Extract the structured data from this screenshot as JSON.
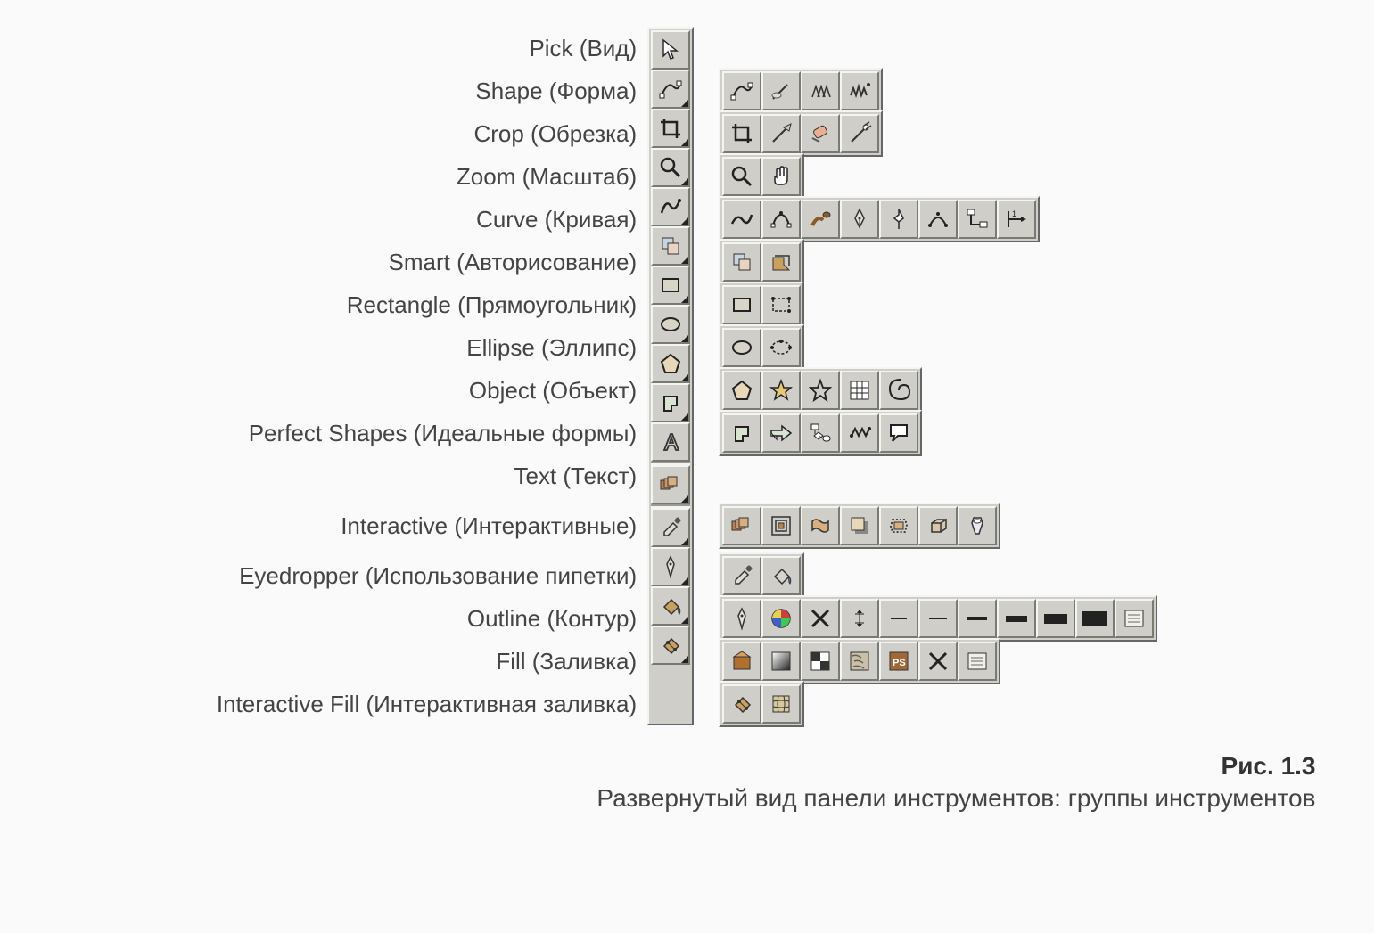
{
  "colors": {
    "panel_bg": "#d0cec8",
    "panel_hilite": "#f4f4f0",
    "panel_shadow": "#7a7a74",
    "page_bg": "#fafafa",
    "text": "#444444",
    "icon_stroke": "#222222"
  },
  "caption": {
    "number": "Рис. 1.3",
    "text": "Развернутый вид панели инструментов: группы инструментов"
  },
  "rows": [
    {
      "label": "Pick (Вид)",
      "main": "pick",
      "flyout_mark": false,
      "flyout": []
    },
    {
      "label": "Shape (Форма)",
      "main": "shape",
      "flyout_mark": true,
      "flyout": [
        "shape",
        "knife",
        "smudge",
        "roughen"
      ]
    },
    {
      "label": "Crop (Обрезка)",
      "main": "crop",
      "flyout_mark": true,
      "flyout": [
        "crop",
        "knife2",
        "eraser",
        "virtseg"
      ]
    },
    {
      "label": "Zoom (Масштаб)",
      "main": "zoom",
      "flyout_mark": true,
      "flyout": [
        "zoom",
        "hand"
      ]
    },
    {
      "label": "Curve (Кривая)",
      "main": "curve",
      "flyout_mark": true,
      "flyout": [
        "freehand",
        "bezier",
        "artistic",
        "pen",
        "polyline",
        "3pt-curve",
        "connector",
        "dimension"
      ]
    },
    {
      "label": "Smart (Авторисование)",
      "main": "smart",
      "flyout_mark": true,
      "flyout": [
        "smart",
        "smartfill"
      ]
    },
    {
      "label": "Rectangle (Прямоугольник)",
      "main": "rect",
      "flyout_mark": true,
      "flyout": [
        "rect",
        "3pt-rect"
      ]
    },
    {
      "label": "Ellipse (Эллипс)",
      "main": "ellipse",
      "flyout_mark": true,
      "flyout": [
        "ellipse",
        "3pt-ellipse"
      ]
    },
    {
      "label": "Object (Объект)",
      "main": "polygon",
      "flyout_mark": true,
      "flyout": [
        "polygon",
        "star",
        "complex-star",
        "graph-paper",
        "spiral"
      ]
    },
    {
      "label": "Perfect Shapes (Идеальные формы)",
      "main": "basic-shape",
      "flyout_mark": true,
      "flyout": [
        "basic-shape",
        "arrow-shape",
        "flowchart-shape",
        "banner-shape",
        "callout-shape"
      ]
    },
    {
      "label": "Text (Текст)",
      "main": "text",
      "flyout_mark": false,
      "flyout": []
    },
    {
      "separator": true
    },
    {
      "label": "Interactive (Интерактивные)",
      "main": "blend",
      "flyout_mark": true,
      "flyout": [
        "blend",
        "contour",
        "distort",
        "dropshadow",
        "envelope",
        "extrude",
        "transparency"
      ]
    },
    {
      "separator": true
    },
    {
      "label": "Eyedropper (Использование пипетки)",
      "main": "eyedropper",
      "flyout_mark": true,
      "flyout": [
        "eyedropper",
        "paintbucket"
      ]
    },
    {
      "label": "Outline (Контур)",
      "main": "outline",
      "flyout_mark": true,
      "flyout": [
        "outline-pen",
        "outline-color",
        "no-outline",
        "hairline",
        "line-0.25",
        "line-0.5",
        "line-1",
        "line-2",
        "line-4",
        "line-8",
        "outline-dialog"
      ]
    },
    {
      "label": "Fill (Заливка)",
      "main": "fill",
      "flyout_mark": true,
      "flyout": [
        "uniform-fill",
        "fountain-fill",
        "pattern-fill",
        "texture-fill",
        "postscript-fill",
        "no-fill",
        "fill-dialog"
      ]
    },
    {
      "label": "Interactive Fill (Интерактивная заливка)",
      "main": "int-fill",
      "flyout_mark": true,
      "flyout": [
        "int-fill",
        "mesh-fill"
      ]
    }
  ],
  "icons": {
    "pick": "<svg class='icon-svg' viewBox='0 0 30 30'><path d='M7 4 L7 22 L12 17 L15 25 L18 24 L15 16 L22 16 Z' fill='#fff' stroke='#222' stroke-width='1.4'/></svg>",
    "shape": "<svg class='icon-svg' viewBox='0 0 30 30'><path d='M5 22 Q12 6 18 12 Q24 18 26 8' fill='none' stroke='#222' stroke-width='2'/><rect x='3' y='20' width='5' height='5' fill='#fff' stroke='#222'/><rect x='22' y='6' width='5' height='5' fill='#fff' stroke='#222'/></svg>",
    "knife": "<svg class='icon-svg' viewBox='0 0 30 30'><path d='M6 24 L18 12 L22 8' stroke='#333' stroke-width='2' fill='none'/><ellipse cx='10' cy='20' rx='5' ry='3' fill='#e0dcd2' stroke='#555'/></svg>",
    "smudge": "<svg class='icon-svg' viewBox='0 0 30 30'><path d='M6 22 L10 10 L14 22 M12 22 L16 10 L20 22 M18 22 L22 10 L26 22' stroke='#333' stroke-width='1.5' fill='none'/></svg>",
    "roughen": "<svg class='icon-svg' viewBox='0 0 30 30'><path d='M5 20 L8 12 L11 20 L14 10 L17 20 L20 12 L23 20' stroke='#333' stroke-width='2' fill='none'/><circle cx='25' cy='8' r='2' fill='#333'/></svg>",
    "crop": "<svg class='icon-svg' viewBox='0 0 30 30'><path d='M8 4 L8 22 L26 22 M4 8 L22 8 L22 26' stroke='#222' stroke-width='2.5' fill='none'/></svg>",
    "knife2": "<svg class='icon-svg' viewBox='0 0 30 30'><path d='M6 24 L20 10' stroke='#333' stroke-width='2'/><polygon points='18,8 26,4 24,12' fill='#ccc' stroke='#333'/></svg>",
    "eraser": "<svg class='icon-svg' viewBox='0 0 30 30'><rect x='8' y='8' width='14' height='10' rx='3' transform='rotate(-30 15 13)' fill='#e8b090' stroke='#333'/><path d='M6 20 L14 24' stroke='#555' stroke-width='2'/></svg>",
    "virtseg": "<svg class='icon-svg' viewBox='0 0 30 30'><path d='M6 24 L22 8' stroke='#333' stroke-width='2'/><circle cx='22' cy='8' r='3' fill='#fff' stroke='#333'/><path d='M20 6 L26 2 M22 10 L28 6' stroke='#333' stroke-width='1.5'/></svg>",
    "zoom": "<svg class='icon-svg' viewBox='0 0 30 30'><circle cx='12' cy='12' r='7' fill='none' stroke='#222' stroke-width='2.5'/><path d='M17 17 L25 25' stroke='#222' stroke-width='3'/></svg>",
    "hand": "<svg class='icon-svg' viewBox='0 0 30 30'><path d='M10 16 L10 8 Q10 6 12 6 Q14 6 14 8 L14 14 L14 6 Q14 4 16 4 Q18 4 18 6 L18 14 L18 7 Q18 5 20 5 Q22 5 22 7 L22 18 Q22 24 16 24 L12 24 Q8 24 8 20 L8 16 Q8 14 10 16 Z' fill='#fff' stroke='#222' stroke-width='1.5'/></svg>",
    "curve": "<svg class='icon-svg' viewBox='0 0 30 30'><path d='M5 22 Q10 6 15 14 Q20 22 25 8' fill='none' stroke='#222' stroke-width='2.5'/><circle cx='25' cy='8' r='2' fill='#222'/></svg>",
    "freehand": "<svg class='icon-svg' viewBox='0 0 30 30'><path d='M4 20 Q10 8 16 16 Q22 24 26 10' fill='none' stroke='#222' stroke-width='2.5'/></svg>",
    "bezier": "<svg class='icon-svg' viewBox='0 0 30 30'><path d='M6 22 C 10 6, 20 6, 24 22' fill='none' stroke='#222' stroke-width='2'/><rect x='4' y='20' width='4' height='4' fill='#fff' stroke='#222'/><rect x='22' y='20' width='4' height='4' fill='#fff' stroke='#222'/><circle cx='15' cy='8' r='2' fill='#222'/></svg>",
    "artistic": "<svg class='icon-svg' viewBox='0 0 30 30'><path d='M6 22 Q12 10 18 16' fill='none' stroke='#8a5a2a' stroke-width='4'/><ellipse cx='22' cy='10' rx='4' ry='3' fill='#8a5a2a' stroke='#333'/></svg>",
    "pen": "<svg class='icon-svg' viewBox='0 0 30 30'><path d='M15 4 L10 14 L15 24 L20 14 Z' fill='#e8e4d8' stroke='#333' stroke-width='1.5'/><line x1='15' y1='14' x2='15' y2='24' stroke='#333'/><circle cx='15' cy='14' r='1.5' fill='#333'/></svg>",
    "polyline": "<svg class='icon-svg' viewBox='0 0 30 30'><path d='M15 4 L15 10 L10 14 L15 18 L20 14 Z M15 18 L15 26' fill='#fff' stroke='#333' stroke-width='1.6'/></svg>",
    "3pt-curve": "<svg class='icon-svg' viewBox='0 0 30 30'><path d='M6 22 Q15 4 24 22' fill='none' stroke='#222' stroke-width='2'/><circle cx='6' cy='22' r='2' fill='#222'/><circle cx='24' cy='22' r='2' fill='#222'/><circle cx='15' cy='9' r='2' fill='#222'/></svg>",
    "connector": "<svg class='icon-svg' viewBox='0 0 30 30'><rect x='4' y='4' width='8' height='6' fill='#fff' stroke='#222'/><rect x='18' y='18' width='8' height='6' fill='#fff' stroke='#222'/><path d='M8 10 L8 21 L18 21' fill='none' stroke='#222' stroke-width='2'/></svg>",
    "dimension": "<svg class='icon-svg' viewBox='0 0 30 30'><line x1='6' y1='6' x2='6' y2='24' stroke='#222' stroke-width='2'/><line x1='6' y1='15' x2='24' y2='15' stroke='#222' stroke-width='2'/><polygon points='20,12 26,15 20,18' fill='#222'/><text x='10' y='12' font-size='9' fill='#222'>1</text></svg>",
    "smart": "<svg class='icon-svg' viewBox='0 0 30 30'><rect x='6' y='6' width='12' height='12' fill='#c8d4e0' stroke='#333'/><rect x='12' y='12' width='12' height='12' fill='#e8d4c0' stroke='#333'/></svg>",
    "smartfill": "<svg class='icon-svg' viewBox='0 0 30 30'><polygon points='6,24 6,10 18,10 18,18 24,24' fill='#c8a060' stroke='#333'/><path d='M8 8 L24 8 L24 20' fill='none' stroke='#333' stroke-width='1.5'/></svg>",
    "rect": "<svg class='icon-svg' viewBox='0 0 30 30'><rect x='6' y='8' width='18' height='14' fill='#d8d4c8' stroke='#222' stroke-width='2'/></svg>",
    "3pt-rect": "<svg class='icon-svg' viewBox='0 0 30 30'><rect x='6' y='8' width='18' height='14' fill='none' stroke='#222' stroke-width='1.5' stroke-dasharray='3,2'/><circle cx='6' cy='8' r='2' fill='#222'/><circle cx='24' cy='8' r='2' fill='#222'/><circle cx='24' cy='22' r='2' fill='#222'/></svg>",
    "ellipse": "<svg class='icon-svg' viewBox='0 0 30 30'><ellipse cx='15' cy='15' rx='10' ry='7' fill='#d8d4c8' stroke='#222' stroke-width='2'/></svg>",
    "3pt-ellipse": "<svg class='icon-svg' viewBox='0 0 30 30'><ellipse cx='15' cy='15' rx='10' ry='7' fill='none' stroke='#222' stroke-width='1.5' stroke-dasharray='3,2'/><circle cx='5' cy='15' r='2' fill='#222'/><circle cx='25' cy='15' r='2' fill='#222'/><circle cx='15' cy='8' r='2' fill='#222'/></svg>",
    "polygon": "<svg class='icon-svg' viewBox='0 0 30 30'><polygon points='15,5 25,13 21,25 9,25 5,13' fill='#e8d8b8' stroke='#222' stroke-width='2'/></svg>",
    "star": "<svg class='icon-svg' viewBox='0 0 30 30'><polygon points='15,4 18,12 26,12 20,17 22,25 15,20 8,25 10,17 4,12 12,12' fill='#e8c878' stroke='#222' stroke-width='1.5'/></svg>",
    "complex-star": "<svg class='icon-svg' viewBox='0 0 30 30'><g transform='translate(15,15)'><polygon points='0,-11 3,-3 11,-3 5,3 7,11 0,6 -7,11 -5,3 -11,-3 -3,-3' fill='none' stroke='#222' stroke-width='1.8'/></g></svg>",
    "graph-paper": "<svg class='icon-svg' viewBox='0 0 30 30'><rect x='5' y='5' width='20' height='20' fill='#fff' stroke='#222'/><line x1='5' y1='12' x2='25' y2='12' stroke='#222'/><line x1='5' y1='18' x2='25' y2='18' stroke='#222'/><line x1='12' y1='5' x2='12' y2='25' stroke='#222'/><line x1='18' y1='5' x2='18' y2='25' stroke='#222'/></svg>",
    "spiral": "<svg class='icon-svg' viewBox='0 0 30 30'><path d='M15 15 Q15 9 21 9 Q27 9 27 17 Q27 25 17 25 Q5 25 5 13 Q5 3 17 3' fill='none' stroke='#222' stroke-width='2'/></svg>",
    "basic-shape": "<svg class='icon-svg' viewBox='0 0 30 30'><path d='M8 8 L22 8 L22 18 L16 18 L16 24 L8 24 Z' fill='#d8e4d0' stroke='#222' stroke-width='2'/></svg>",
    "arrow-shape": "<svg class='icon-svg' viewBox='0 0 30 30'><path d='M4 12 L16 12 L16 7 L26 15 L16 23 L16 18 L4 18 Z' fill='#d8e4d0' stroke='#222' stroke-width='1.5'/><path d='M4 18 L10 18 L10 22 L4 15' fill='#d8e4d0' stroke='#222' stroke-width='1.2'/></svg>",
    "flowchart-shape": "<svg class='icon-svg' viewBox='0 0 30 30'><rect x='5' y='5' width='8' height='6' fill='#fff' stroke='#222'/><polygon points='8,18 13,14 18,18 13,22' fill='#fff' stroke='#222'/><rect x='18' y='18' width='8' height='6' rx='3' fill='#fff' stroke='#222'/><path d='M9 11 L9 16 M13 18 L18 21' stroke='#222'/></svg>",
    "banner-shape": "<svg class='icon-svg' viewBox='0 0 30 30'><path d='M6 18 L10 10 L14 18 L18 10 L22 18 L26 10' stroke='#222' stroke-width='2' fill='none'/><circle cx='6' cy='18' r='2' fill='#222'/><circle cx='26' cy='10' r='2' fill='#222'/></svg>",
    "callout-shape": "<svg class='icon-svg' viewBox='0 0 30 30'><path d='M6 6 L24 6 L24 18 L14 18 L8 24 L10 18 L6 18 Z' fill='#fff' stroke='#222' stroke-width='2'/></svg>",
    "text": "<svg class='icon-svg' viewBox='0 0 30 30'><path d='M15 6 L8 24 L11 24 L13 19 L19 19 L21 24 L24 24 L17 6 Z M14 16 L16 10 L18 16 Z' fill='none' stroke='#333' stroke-width='1.8'/></svg>",
    "blend": "<svg class='icon-svg' viewBox='0 0 30 30'><rect x='4' y='10' width='10' height='10' fill='#b88050' stroke='#333'/><rect x='8' y='8' width='10' height='10' fill='#c89868' stroke='#333'/><rect x='12' y='6' width='10' height='10' fill='#d8b080' stroke='#333'/></svg>",
    "contour": "<svg class='icon-svg' viewBox='0 0 30 30'><rect x='5' y='5' width='20' height='20' fill='none' stroke='#333' stroke-width='1.5'/><rect x='9' y='9' width='12' height='12' fill='none' stroke='#333' stroke-width='1.5'/><rect x='12' y='12' width='6' height='6' fill='#b88050' stroke='#333'/></svg>",
    "distort": "<svg class='icon-svg' viewBox='0 0 30 30'><path d='M6 10 Q10 6 15 10 Q20 14 24 10 L24 20 Q20 24 15 20 Q10 16 6 20 Z' fill='#d8b080' stroke='#333' stroke-width='1.5'/></svg>",
    "dropshadow": "<svg class='icon-svg' viewBox='0 0 30 30'><rect x='10' y='10' width='14' height='14' fill='#888'/><rect x='6' y='6' width='14' height='14' fill='#e8d8b8' stroke='#333'/></svg>",
    "envelope": "<svg class='icon-svg' viewBox='0 0 30 30'><path d='M8 8 L22 8 L24 14 L22 22 L8 22 L6 16 Z' fill='none' stroke='#333' stroke-width='1.8' stroke-dasharray='2,2'/><rect x='10' y='11' width='10' height='8' fill='#d8b080' stroke='#333'/></svg>",
    "extrude": "<svg class='icon-svg' viewBox='0 0 30 30'><path d='M8 12 L18 12 L18 22 L8 22 Z M18 12 L24 8 L24 18 L18 22 M8 12 L14 8 L24 8' fill='#d8c8a8' stroke='#333' stroke-width='1.5'/></svg>",
    "transparency": "<svg class='icon-svg' viewBox='0 0 30 30'><path d='M11 6 L19 6 L21 12 L17 24 L13 24 L9 12 Z' fill='#e8e8f0' stroke='#333' stroke-width='1.5'/><ellipse cx='15' cy='10' rx='4' ry='2' fill='#fff' stroke='#333'/></svg>",
    "eyedropper": "<svg class='icon-svg' viewBox='0 0 30 30'><path d='M8 24 L8 20 L18 10 L22 14 L12 24 Z' fill='#e0dcd0' stroke='#333' stroke-width='1.5'/><rect x='20' y='4' width='6' height='6' rx='2' transform='rotate(45 23 7)' fill='#555'/></svg>",
    "paintbucket": "<svg class='icon-svg' viewBox='0 0 30 30'><path d='M8 16 L16 8 L24 16 L16 24 Z' fill='#d8d4c8' stroke='#333' stroke-width='1.5'/><path d='M24 16 Q27 20 25 24 Q23 22 24 16' fill='#4a80c8' stroke='#333'/></svg>",
    "outline": "<svg class='icon-svg' viewBox='0 0 30 30'><path d='M15 4 L11 12 L15 26 L19 12 Z' fill='#e8e4d8' stroke='#333' stroke-width='1.5'/><circle cx='15' cy='12' r='1.5' fill='#333'/></svg>",
    "outline-pen": "<svg class='icon-svg' viewBox='0 0 30 30'><path d='M15 4 L11 12 L15 26 L19 12 Z' fill='#e8e4d8' stroke='#333' stroke-width='1.5'/><circle cx='15' cy='12' r='1.5' fill='#333'/></svg>",
    "outline-color": "<svg class='icon-svg' viewBox='0 0 30 30'><circle cx='15' cy='15' r='10' fill='#fff' stroke='#333' stroke-width='1.5'/><path d='M15 5 A10 10 0 0 1 25 15 L15 15 Z' fill='#c84040'/><path d='M25 15 A10 10 0 0 1 15 25 L15 15 Z' fill='#40c850'/><path d='M15 25 A10 10 0 0 1 5 15 L15 15 Z' fill='#4060c8'/><path d='M5 15 A10 10 0 0 1 15 5 L15 15 Z' fill='#e8d050'/></svg>",
    "no-outline": "<svg class='icon-svg' viewBox='0 0 30 30'><line x1='6' y1='24' x2='24' y2='6' stroke='#222' stroke-width='3'/><line x1='6' y1='6' x2='24' y2='24' stroke='#222' stroke-width='3'/></svg>",
    "hairline": "<svg class='icon-svg' viewBox='0 0 30 30'><line x1='15' y1='6' x2='15' y2='24' stroke='#222' stroke-width='1'/><line x1='10' y1='10' x2='20' y2='10' stroke='#222'/><line x1='10' y1='20' x2='20' y2='20' stroke='#222'/><polygon points='15,5 12,9 18,9' fill='#222'/><polygon points='15,25 12,21 18,21' fill='#222'/></svg>",
    "line-0.25": "<div style='width:30px;height:30px;display:flex;align-items:center;justify-content:center'><span class='dashseg' style='width:18px;height:1px'></span></div>",
    "line-0.5": "<div style='width:30px;height:30px;display:flex;align-items:center;justify-content:center'><span class='dashseg' style='width:20px;height:2px'></span></div>",
    "line-1": "<div style='width:30px;height:30px;display:flex;align-items:center;justify-content:center'><span class='dashseg' style='width:22px;height:4px'></span></div>",
    "line-2": "<div style='width:30px;height:30px;display:flex;align-items:center;justify-content:center'><span class='dashseg' style='width:24px;height:7px'></span></div>",
    "line-4": "<div style='width:30px;height:30px;display:flex;align-items:center;justify-content:center'><span class='dashseg' style='width:26px;height:11px'></span></div>",
    "line-8": "<div style='width:30px;height:30px;display:flex;align-items:center;justify-content:center'><span class='dashseg' style='width:28px;height:16px'></span></div>",
    "outline-dialog": "<svg class='icon-svg' viewBox='0 0 30 30'><rect x='5' y='6' width='20' height='18' fill='#f0f0e8' stroke='#333'/><line x1='8' y1='11' x2='22' y2='11' stroke='#666'/><line x1='8' y1='15' x2='22' y2='15' stroke='#666'/><line x1='8' y1='19' x2='22' y2='19' stroke='#666'/></svg>",
    "fill": "<svg class='icon-svg' viewBox='0 0 30 30'><path d='M8 16 L16 8 L24 16 L16 24 Z' fill='#c8a060' stroke='#333' stroke-width='1.5'/><path d='M24 16 Q27 20 25 24 Q23 22 24 16' fill='#4a80c8' stroke='#333'/></svg>",
    "uniform-fill": "<svg class='icon-svg' viewBox='0 0 30 30'><polygon points='6,24 6,10 24,10 24,24' fill='#b07030' stroke='#333'/><polygon points='6,10 15,4 24,10' fill='#d8a060' stroke='#333'/></svg>",
    "fountain-fill": "<svg class='icon-svg' viewBox='0 0 30 30'><defs><linearGradient id='gf' x1='0' y1='0' x2='1' y2='1'><stop offset='0%' stop-color='#fff'/><stop offset='100%' stop-color='#222'/></linearGradient></defs><rect x='5' y='5' width='20' height='20' fill='url(#gf)' stroke='#333'/></svg>",
    "pattern-fill": "<svg class='icon-svg' viewBox='0 0 30 30'><rect x='5' y='5' width='20' height='20' fill='#fff' stroke='#333'/><rect x='5' y='5' width='10' height='10' fill='#333'/><rect x='15' y='15' width='10' height='10' fill='#333'/></svg>",
    "texture-fill": "<svg class='icon-svg' viewBox='0 0 30 30'><rect x='5' y='5' width='20' height='20' fill='#c8c0a8' stroke='#333'/><path d='M7 9 Q12 7 17 11 M9 15 Q14 13 19 17 M8 21 Q14 19 20 23' stroke='#6a6050' stroke-width='1.5' fill='none'/></svg>",
    "postscript-fill": "<svg class='icon-svg' viewBox='0 0 30 30'><rect x='5' y='5' width='20' height='20' fill='#a06838' stroke='#333'/><text x='8' y='20' font-size='11' font-weight='bold' fill='#fff'>PS</text></svg>",
    "no-fill": "<svg class='icon-svg' viewBox='0 0 30 30'><line x1='6' y1='24' x2='24' y2='6' stroke='#222' stroke-width='3'/><line x1='6' y1='6' x2='24' y2='24' stroke='#222' stroke-width='3'/></svg>",
    "fill-dialog": "<svg class='icon-svg' viewBox='0 0 30 30'><rect x='5' y='6' width='20' height='18' fill='#f0f0e8' stroke='#333'/><line x1='8' y1='11' x2='22' y2='11' stroke='#666'/><line x1='8' y1='15' x2='22' y2='15' stroke='#666'/><line x1='8' y1='19' x2='22' y2='19' stroke='#666'/></svg>",
    "int-fill": "<svg class='icon-svg' viewBox='0 0 30 30'><path d='M8 16 L16 8 L24 16 L16 24 Z' fill='#c8a060' stroke='#333' stroke-width='1.5'/><circle cx='12' cy='12' r='2' fill='#333'/><circle cx='20' cy='20' r='2' fill='#333'/><line x1='12' y1='12' x2='20' y2='20' stroke='#333'/></svg>",
    "mesh-fill": "<svg class='icon-svg' viewBox='0 0 30 30'><rect x='6' y='6' width='18' height='18' fill='#d8c8a0' stroke='#333'/><path d='M6 12 Q15 10 24 12 M6 18 Q15 20 24 18 M12 6 Q10 15 12 24 M18 6 Q20 15 18 24' stroke='#333' fill='none'/></svg>"
  }
}
